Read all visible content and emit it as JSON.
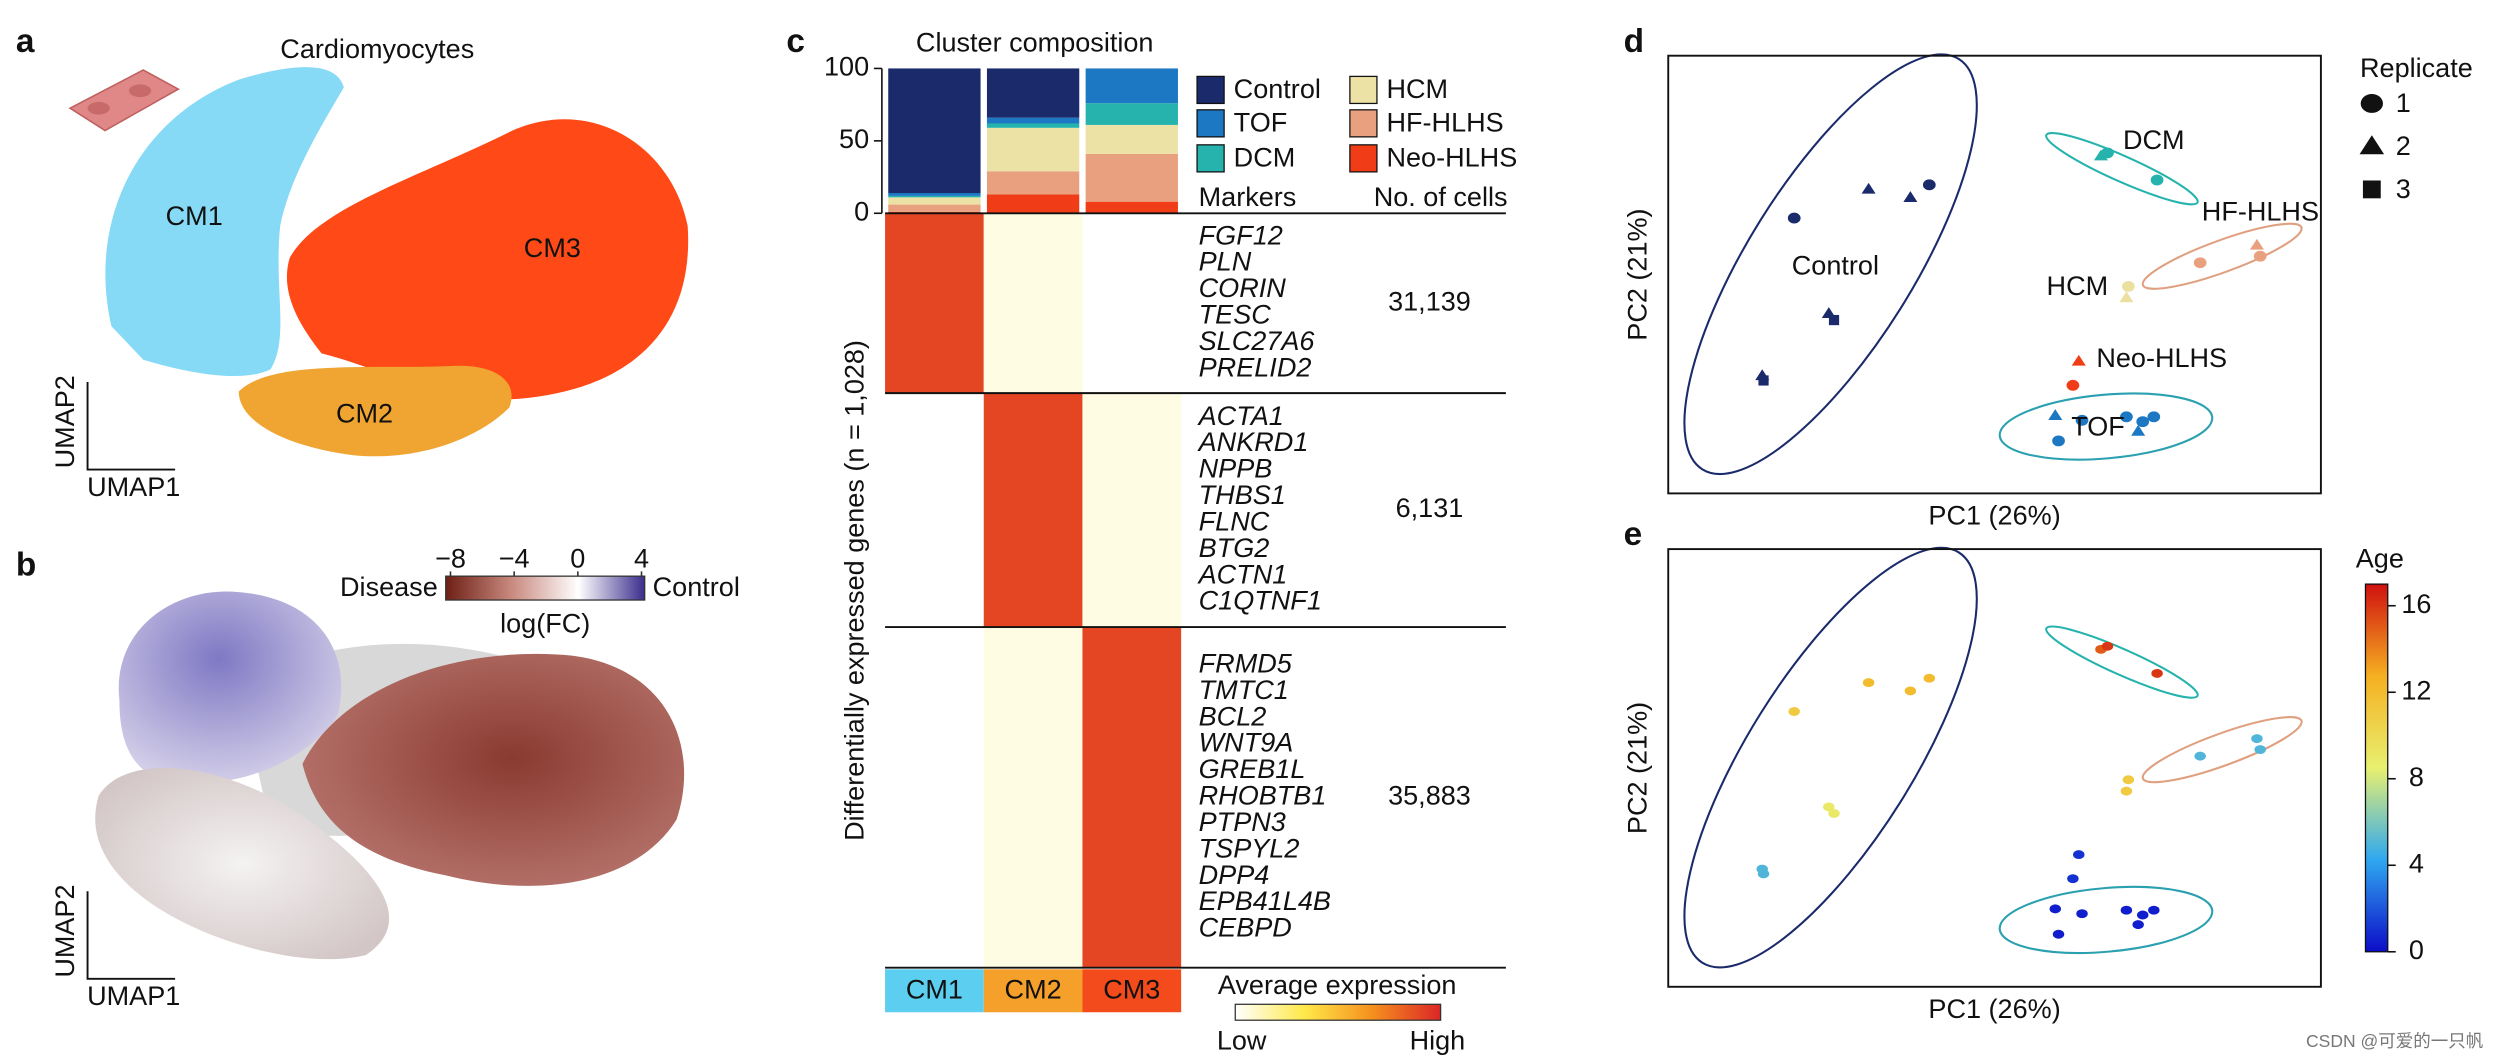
{
  "chart_data": [
    {
      "type": "umap",
      "panel": "a",
      "annotation": "Cardiomyocytes",
      "clusters": [
        "CM1",
        "CM2",
        "CM3"
      ],
      "colors": [
        "#86daf5",
        "#f0a532",
        "#ff4a17"
      ],
      "xlabel": "UMAP1",
      "ylabel": "UMAP2"
    },
    {
      "type": "umap",
      "panel": "b",
      "xlabel": "UMAP1",
      "ylabel": "UMAP2",
      "colorbar": {
        "clim": [
          -8.3,
          4.2
        ],
        "ticks": [
          {
            "value": -8,
            "label": "−8"
          },
          {
            "value": -4,
            "label": "−4"
          },
          0,
          4
        ],
        "low": "Disease",
        "high": "Control",
        "title": "log(FC)",
        "colors": [
          "#6e1f14",
          "#c98a80",
          "#ffffff",
          "#3a2d8c"
        ]
      }
    },
    {
      "type": "bar",
      "panel": "c",
      "title": "Cluster composition",
      "ylim": [
        0,
        100
      ],
      "yticks": [
        0,
        50,
        100
      ],
      "series": [
        {
          "name": "Neo-HLHS",
          "color": "#f03c17",
          "values": [
            1,
            13,
            8
          ]
        },
        {
          "name": "HF-HLHS",
          "color": "#e9a07f",
          "values": [
            5,
            16,
            33
          ]
        },
        {
          "name": "HCM",
          "color": "#ede2a6",
          "values": [
            5,
            30,
            20
          ]
        },
        {
          "name": "DCM",
          "color": "#26b3ad",
          "values": [
            1,
            3,
            15
          ]
        },
        {
          "name": "TOF",
          "color": "#1c78c2",
          "values": [
            2,
            4,
            24
          ]
        },
        {
          "name": "Control",
          "color": "#1a2a6b",
          "values": [
            86,
            34,
            0
          ]
        }
      ]
    },
    {
      "type": "heatmap",
      "ylabel": "Differentially expressed genes (n = 1,028)",
      "categories": [
        "CM1",
        "CM2",
        "CM3"
      ],
      "category_colors": [
        "#5ccff0",
        "#f5a02a",
        "#f34b1c"
      ],
      "columns": [
        "Markers",
        "No. of cells"
      ],
      "groups": [
        {
          "markers": [
            "FGF12",
            "PLN",
            "CORIN",
            "TESC",
            "SLC27A6",
            "PRELID2"
          ],
          "cells": "31,139"
        },
        {
          "markers": [
            "ACTA1",
            "ANKRD1",
            "NPPB",
            "THBS1",
            "FLNC",
            "BTG2",
            "ACTN1",
            "C1QTNF1"
          ],
          "cells": "6,131"
        },
        {
          "markers": [
            "FRMD5",
            "TMTC1",
            "BCL2",
            "WNT9A",
            "GREB1L",
            "RHOBTB1",
            "PTPN3",
            "TSPYL2",
            "DPP4",
            "EPB41L4B",
            "CEBPD"
          ],
          "cells": "35,883"
        }
      ],
      "values": [
        [
          0.9,
          0.05,
          0
        ],
        [
          0,
          0.9,
          0.05
        ],
        [
          0,
          0.05,
          0.9
        ]
      ],
      "colorbar": {
        "title": "Average expression",
        "low": "Low",
        "high": "High",
        "colors": [
          "#ffffff",
          "#ffe94a",
          "#f5901e",
          "#dc2626"
        ]
      }
    },
    {
      "type": "scatter",
      "panel": "d",
      "xlabel": "PC1 (26%)",
      "ylabel": "PC2 (21%)",
      "xlim": [
        0,
        100
      ],
      "ylim": [
        0,
        100
      ],
      "replicate_legend": {
        "title": "Replicate",
        "labels": [
          "1",
          "2",
          "3"
        ]
      },
      "series": [
        {
          "name": "Control",
          "color": "#1a2a6b",
          "x": [
            19.3,
            30.7,
            37.1,
            40.0,
            24.6,
            25.4,
            14.4,
            14.6
          ],
          "y": [
            62.9,
            69.5,
            67.6,
            70.5,
            41.1,
            39.6,
            26.9,
            25.8
          ],
          "replicate": [
            1,
            2,
            2,
            1,
            2,
            3,
            2,
            3
          ]
        },
        {
          "name": "DCM",
          "color": "#26b3ad",
          "x": [
            66.3,
            67.3,
            74.9
          ],
          "y": [
            77.1,
            77.8,
            71.6
          ],
          "replicate": [
            2,
            1,
            1
          ]
        },
        {
          "name": "HF-HLHS",
          "color": "#e9a07f",
          "x": [
            81.5,
            90.2,
            90.7
          ],
          "y": [
            52.7,
            56.7,
            54.2
          ],
          "replicate": [
            1,
            2,
            1
          ]
        },
        {
          "name": "HCM",
          "color": "#ece0a0",
          "x": [
            70.5,
            70.2
          ],
          "y": [
            47.3,
            44.7
          ],
          "replicate": [
            1,
            2
          ]
        },
        {
          "name": "Neo-HLHS",
          "color": "#f03c17",
          "x": [
            62.9,
            62.0
          ],
          "y": [
            30.2,
            24.7
          ],
          "replicate": [
            2,
            1
          ]
        },
        {
          "name": "TOF",
          "color": "#1c78c2",
          "x": [
            59.3,
            59.8,
            70.2,
            72.7,
            74.4,
            72.0,
            63.4
          ],
          "y": [
            17.8,
            12.0,
            17.5,
            16.4,
            17.5,
            14.2,
            16.7
          ],
          "replicate": [
            2,
            1,
            1,
            1,
            1,
            2,
            1
          ]
        }
      ]
    },
    {
      "type": "scatter",
      "panel": "e",
      "xlabel": "PC1 (26%)",
      "ylabel": "PC2 (21%)",
      "xlim": [
        0,
        100
      ],
      "ylim": [
        0,
        100
      ],
      "x": [
        19.3,
        30.7,
        37.1,
        40.0,
        24.6,
        25.4,
        14.4,
        14.6,
        66.3,
        67.3,
        74.9,
        81.5,
        90.2,
        90.7,
        70.5,
        70.2,
        62.9,
        62.0,
        59.3,
        59.8,
        70.2,
        72.7,
        74.4,
        72.0,
        63.4
      ],
      "y": [
        62.9,
        69.5,
        67.6,
        70.5,
        41.1,
        39.6,
        26.9,
        25.8,
        77.1,
        77.8,
        71.6,
        52.7,
        56.7,
        54.2,
        47.3,
        44.7,
        30.2,
        24.7,
        17.8,
        12.0,
        17.5,
        16.4,
        17.5,
        14.2,
        16.7
      ],
      "values": [
        11,
        12,
        12,
        12,
        9,
        9,
        5,
        5,
        15,
        16,
        16,
        5,
        5,
        5,
        11,
        11,
        1,
        1,
        0.5,
        0.5,
        0.5,
        0.5,
        0.5,
        0.5,
        0.5
      ],
      "colorbar": {
        "title": "Age",
        "clim": [
          0,
          17
        ],
        "ticks": [
          0,
          4,
          8,
          12,
          16
        ],
        "colors": [
          "#0c0cc8",
          "#2fa8f0",
          "#e8f070",
          "#f5b020",
          "#d01010"
        ]
      }
    }
  ],
  "watermark": "CSDN @可爱的一只帆"
}
